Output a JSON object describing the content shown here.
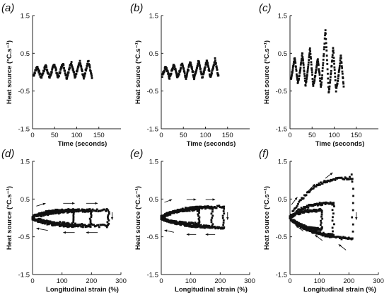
{
  "chart_data": [
    {
      "panel": "(a)",
      "type": "scatter",
      "xlabel": "Time (seconds)",
      "ylabel": "Heat source (°C.s⁻¹)",
      "xlim": [
        0,
        200
      ],
      "ylim": [
        -1.5,
        1.5
      ],
      "xticks": [
        "0",
        "50",
        "100",
        "150"
      ],
      "yticks": [
        "1.5",
        "0.5",
        "-0.5",
        "-1.5"
      ],
      "series": [
        {
          "shape": "oscillation",
          "cycles": 7,
          "t_end": 135,
          "mean": 0.0,
          "amplitude": 0.2,
          "peaks": [
            0.15,
            0.18,
            0.22,
            0.24,
            0.26,
            0.27,
            0.3
          ]
        }
      ]
    },
    {
      "panel": "(b)",
      "type": "scatter",
      "xlabel": "Time (seconds)",
      "ylabel": "Heat source (°C.s⁻¹)",
      "xlim": [
        0,
        200
      ],
      "ylim": [
        -1.5,
        1.5
      ],
      "xticks": [
        "0",
        "50",
        "100",
        "150"
      ],
      "yticks": [
        "1.5",
        "0.5",
        "-0.5",
        "-1.5"
      ],
      "series": [
        {
          "shape": "oscillation",
          "cycles": 7,
          "t_end": 130,
          "mean": 0.0,
          "amplitude": 0.22,
          "peaks": [
            0.15,
            0.2,
            0.24,
            0.27,
            0.3,
            0.32,
            0.33
          ]
        }
      ]
    },
    {
      "panel": "(c)",
      "type": "scatter",
      "xlabel": "Time (seconds)",
      "ylabel": "Heat source (°C.s⁻¹)",
      "xlim": [
        0,
        200
      ],
      "ylim": [
        -1.5,
        1.5
      ],
      "xticks": [
        "0",
        "50",
        "100",
        "150"
      ],
      "yticks": [
        "1.5",
        "0.5",
        "-0.5",
        "-1.5"
      ],
      "series": [
        {
          "shape": "growing-oscillation",
          "cycles": 7,
          "t_end": 122,
          "peaks": [
            0.4,
            0.5,
            0.65,
            0.35,
            1.15,
            0.65,
            0.45
          ],
          "troughs": [
            -0.25,
            -0.3,
            -0.35,
            -0.35,
            -0.4,
            -0.55,
            -0.45
          ]
        }
      ]
    },
    {
      "panel": "(d)",
      "type": "scatter",
      "xlabel": "Longitudinal strain (%)",
      "ylabel": "Heat source (°C.s⁻¹)",
      "xlim": [
        0,
        300
      ],
      "ylim": [
        -1.5,
        1.5
      ],
      "xticks": [
        "0",
        "100",
        "200",
        "300"
      ],
      "yticks": [
        "1.5",
        "0.5",
        "-0.5",
        "-1.5"
      ],
      "series": [
        {
          "shape": "hysteresis-loops",
          "loops": [
            [
              260,
              0.2,
              -0.2
            ],
            [
              200,
              0.2,
              -0.2
            ],
            [
              140,
              0.2,
              -0.2
            ]
          ]
        }
      ],
      "annotations": [
        "loading arrows above the loops pointing right",
        "unloading arrows below the loops pointing left"
      ]
    },
    {
      "panel": "(e)",
      "type": "scatter",
      "xlabel": "Longitudinal strain (%)",
      "ylabel": "Heat source (°C.s⁻¹)",
      "xlim": [
        0,
        300
      ],
      "ylim": [
        -1.5,
        1.5
      ],
      "xticks": [
        "0",
        "100",
        "200",
        "300"
      ],
      "yticks": [
        "1.5",
        "0.5",
        "-0.5",
        "-1.5"
      ],
      "series": [
        {
          "shape": "hysteresis-loops",
          "loops": [
            [
              215,
              0.3,
              -0.25
            ],
            [
              175,
              0.28,
              -0.22
            ],
            [
              130,
              0.22,
              -0.15
            ]
          ]
        }
      ],
      "annotations": [
        "loading arrows above the loops pointing right",
        "unloading arrows below the loops pointing left"
      ]
    },
    {
      "panel": "(f)",
      "type": "scatter",
      "xlabel": "Longitudinal strain (%)",
      "ylabel": "Heat source (°C.s⁻¹)",
      "xlim": [
        0,
        300
      ],
      "ylim": [
        -1.5,
        1.5
      ],
      "xticks": [
        "0",
        "100",
        "200",
        "300"
      ],
      "yticks": [
        "1.5",
        "0.5",
        "-0.5",
        "-1.5"
      ],
      "series": [
        {
          "shape": "hysteresis-loops",
          "loops": [
            [
              215,
              1.15,
              -0.55
            ],
            [
              150,
              0.4,
              -0.45
            ],
            [
              110,
              0.2,
              -0.3
            ]
          ]
        }
      ],
      "annotations": [
        "loading arrows above the loops pointing right",
        "unloading arrows below the loops pointing left"
      ]
    }
  ]
}
